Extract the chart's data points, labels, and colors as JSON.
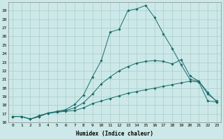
{
  "xlabel": "Humidex (Indice chaleur)",
  "background_color": "#cce8e8",
  "grid_color": "#aacccc",
  "line_color": "#1a6b6b",
  "xlim": [
    -0.5,
    23.5
  ],
  "ylim": [
    16,
    30
  ],
  "xticks": [
    0,
    1,
    2,
    3,
    4,
    5,
    6,
    7,
    8,
    9,
    10,
    11,
    12,
    13,
    14,
    15,
    16,
    17,
    18,
    19,
    20,
    21,
    22,
    23
  ],
  "yticks": [
    16,
    17,
    18,
    19,
    20,
    21,
    22,
    23,
    24,
    25,
    26,
    27,
    28,
    29
  ],
  "series": [
    [
      16.7,
      16.7,
      16.4,
      16.7,
      17.1,
      17.2,
      17.3,
      17.4,
      17.7,
      18.2,
      18.5,
      18.8,
      19.1,
      19.4,
      19.6,
      19.8,
      20.0,
      20.2,
      20.4,
      20.6,
      20.8,
      20.7,
      18.5,
      18.4
    ],
    [
      16.7,
      16.7,
      16.4,
      16.8,
      17.1,
      17.2,
      17.4,
      17.7,
      18.3,
      19.3,
      20.5,
      21.3,
      22.0,
      22.5,
      22.9,
      23.1,
      23.2,
      23.1,
      22.8,
      23.3,
      21.4,
      20.8,
      19.3,
      18.5
    ],
    [
      16.7,
      16.7,
      16.4,
      16.7,
      17.1,
      17.3,
      17.5,
      18.1,
      19.2,
      21.3,
      23.2,
      26.5,
      26.8,
      29.0,
      29.2,
      29.6,
      28.2,
      26.3,
      24.6,
      22.7,
      21.0,
      20.8,
      19.5,
      18.4
    ]
  ]
}
